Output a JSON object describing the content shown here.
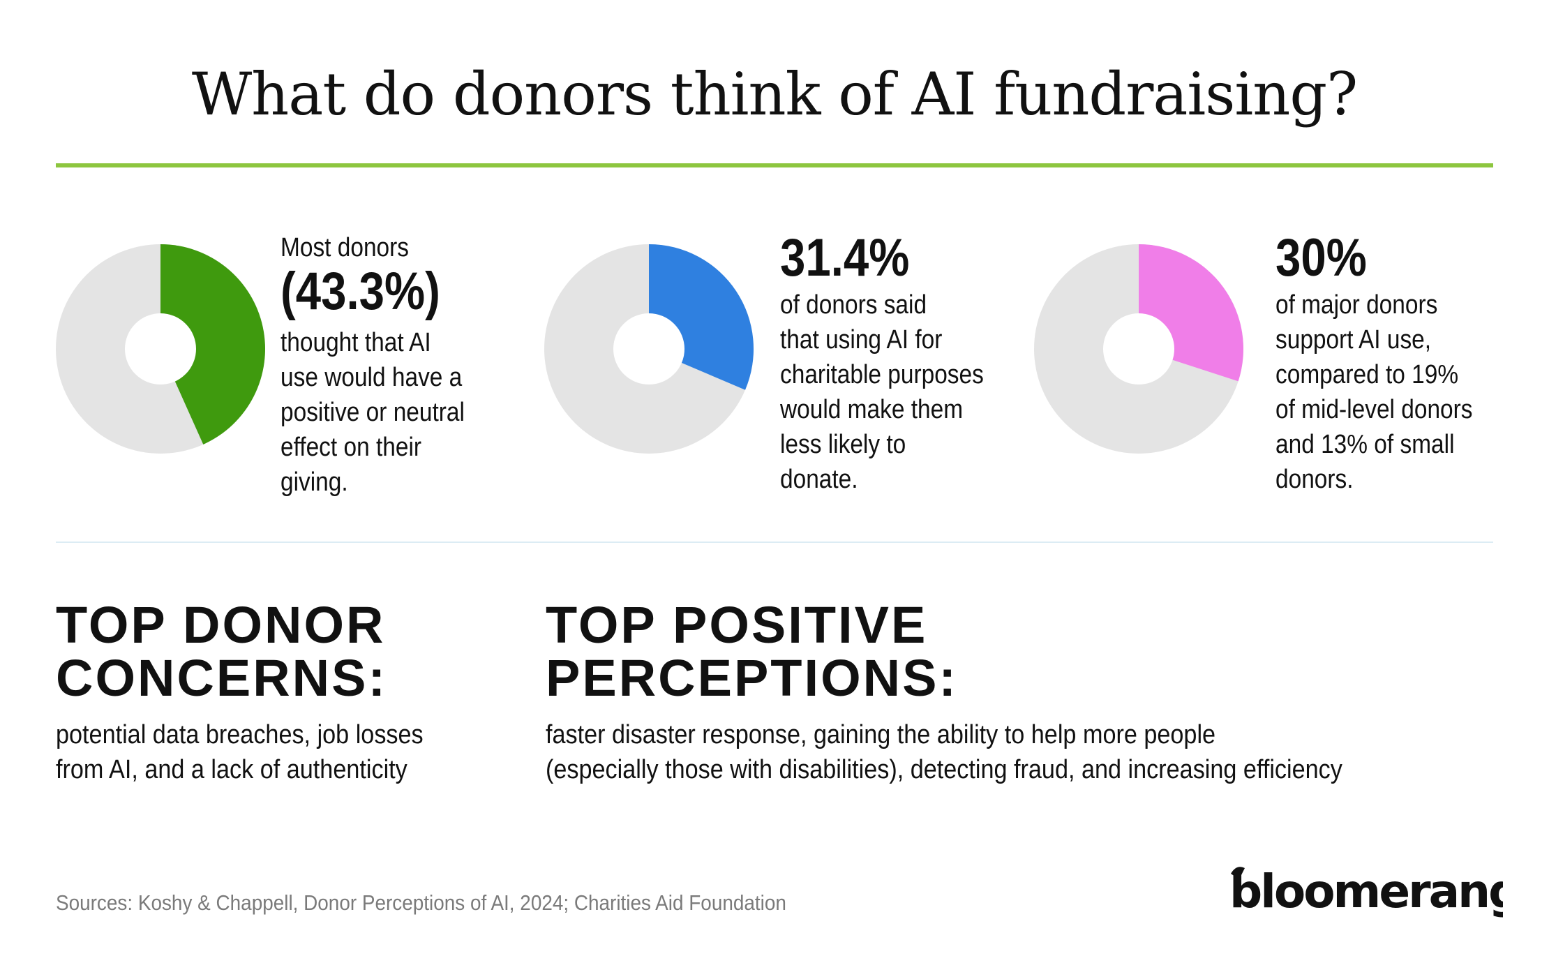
{
  "title": "What do donors think of AI fundraising?",
  "colors": {
    "accent_rule": "#8dc63f",
    "donut_track": "#e4e4e4",
    "donut_hole": "#ffffff",
    "stat1": "#3f9a0e",
    "stat2": "#2f80e0",
    "stat3": "#f07ee8"
  },
  "chart_data": [
    {
      "type": "pie",
      "values": [
        43.3,
        56.7
      ],
      "text_lead": "Most donors",
      "value_label": "(43.3%)",
      "text_body": "thought that AI\nuse would have a\npositive or neutral\neffect on their\ngiving."
    },
    {
      "type": "pie",
      "values": [
        31.4,
        68.6
      ],
      "value_label": "31.4%",
      "text_body": "of donors said\nthat using AI for\ncharitable purposes\nwould make them\nless likely to\ndonate."
    },
    {
      "type": "pie",
      "values": [
        30,
        70
      ],
      "value_label": "30%",
      "text_body": "of major donors\nsupport AI use,\ncompared to 19%\nof mid-level donors\nand 13% of small\ndonors."
    }
  ],
  "concerns": {
    "heading": "TOP DONOR\nCONCERNS:",
    "body": "potential data breaches, job losses\nfrom AI, and a lack of authenticity"
  },
  "perceptions": {
    "heading": "TOP POSITIVE\nPERCEPTIONS:",
    "body": "faster disaster response, gaining the ability to help more people\n(especially those with disabilities), detecting fraud, and increasing efficiency"
  },
  "source": "Sources: Koshy & Chappell, Donor Perceptions of AI, 2024; Charities Aid Foundation",
  "logo": {
    "text": "bloomerang",
    "icon": "boomerang-logo-icon"
  }
}
